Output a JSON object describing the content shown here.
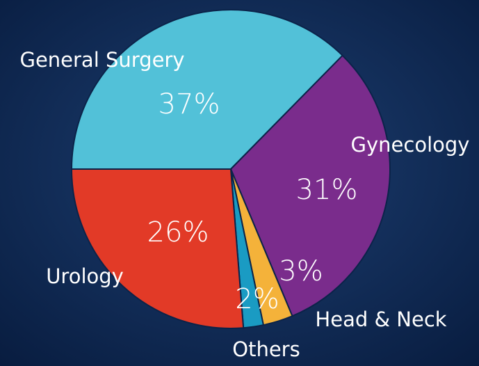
{
  "chart_data": {
    "type": "pie",
    "categories": [
      "General Surgery",
      "Gynecology",
      "Head & Neck",
      "Others",
      "Urology"
    ],
    "values": [
      37,
      31,
      3,
      2,
      26
    ],
    "value_labels": [
      "37%",
      "31%",
      "3%",
      "2%",
      "26%"
    ],
    "colors": [
      "#52c1d8",
      "#7a2c8c",
      "#f4b23a",
      "#1a9bc3",
      "#e23a27"
    ]
  }
}
